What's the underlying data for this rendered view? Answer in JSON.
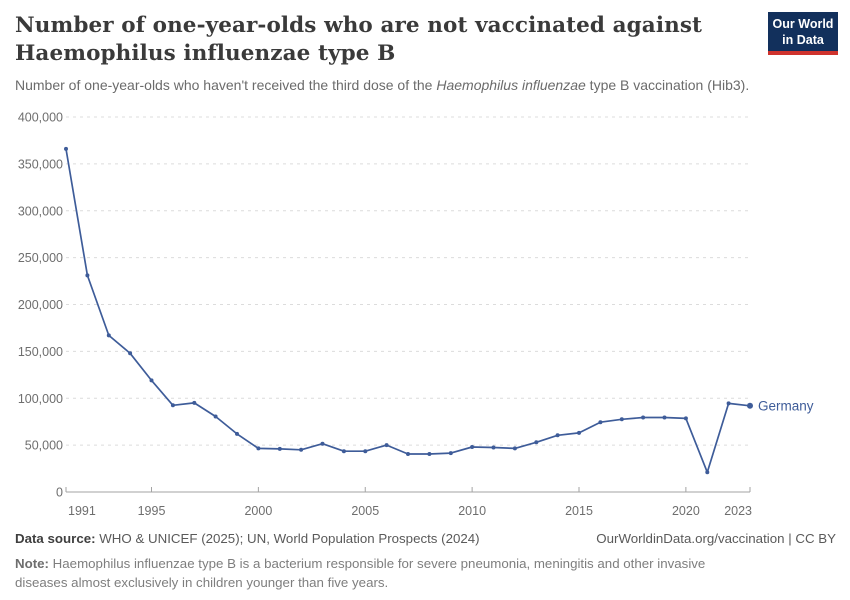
{
  "header": {
    "title_line1": "Number of one-year-olds who are not vaccinated against",
    "title_line2": "Haemophilus influenzae type B",
    "logo": {
      "line1": "Our World",
      "line2": "in Data"
    }
  },
  "subtitle": {
    "part1": "Number of one-year-olds who haven't received the third dose of the ",
    "italic": "Haemophilus influenzae",
    "part2": " type B vaccination (Hib3)."
  },
  "chart_data": {
    "type": "line",
    "title": "Number of one-year-olds who are not vaccinated against Haemophilus influenzae type B",
    "xlabel": "",
    "ylabel": "",
    "xlim": [
      1991,
      2023
    ],
    "ylim": [
      0,
      400000
    ],
    "grid": true,
    "xticks": [
      1991,
      1995,
      2000,
      2005,
      2010,
      2015,
      2020,
      2023
    ],
    "yticks": [
      0,
      50000,
      100000,
      150000,
      200000,
      250000,
      300000,
      350000,
      400000
    ],
    "series": [
      {
        "name": "Germany",
        "color": "#3e5c99",
        "x": [
          1991,
          1992,
          1993,
          1994,
          1995,
          1996,
          1997,
          1998,
          1999,
          2000,
          2001,
          2002,
          2003,
          2004,
          2005,
          2006,
          2007,
          2008,
          2009,
          2010,
          2011,
          2012,
          2013,
          2014,
          2015,
          2016,
          2017,
          2018,
          2019,
          2020,
          2021,
          2022,
          2023
        ],
        "values": [
          366000,
          231000,
          167000,
          148000,
          119000,
          92500,
          95000,
          80500,
          62000,
          46500,
          46000,
          45000,
          51500,
          43500,
          43500,
          50000,
          40500,
          40500,
          41500,
          48000,
          47500,
          46500,
          53000,
          60500,
          63000,
          74500,
          77500,
          79500,
          79500,
          78500,
          21000,
          94500,
          92000
        ]
      }
    ],
    "legend_position": "end-of-line-label"
  },
  "footer": {
    "data_source_label": "Data source:",
    "data_source_value": " WHO & UNICEF (2025); UN, World Population Prospects (2024)",
    "link_text": "OurWorldinData.org/vaccination | CC BY",
    "note_label": "Note:",
    "note_value": " Haemophilus influenzae type B is a bacterium responsible for severe pneumonia, meningitis and other invasive diseases almost exclusively in children younger than five years."
  },
  "colors": {
    "series_blue": "#3e5c99",
    "logo_navy": "#12305c",
    "logo_red": "#cf332d",
    "grid": "#dcdcdc",
    "axis": "#a3a3a3",
    "tick_label": "#6e6e6e"
  }
}
